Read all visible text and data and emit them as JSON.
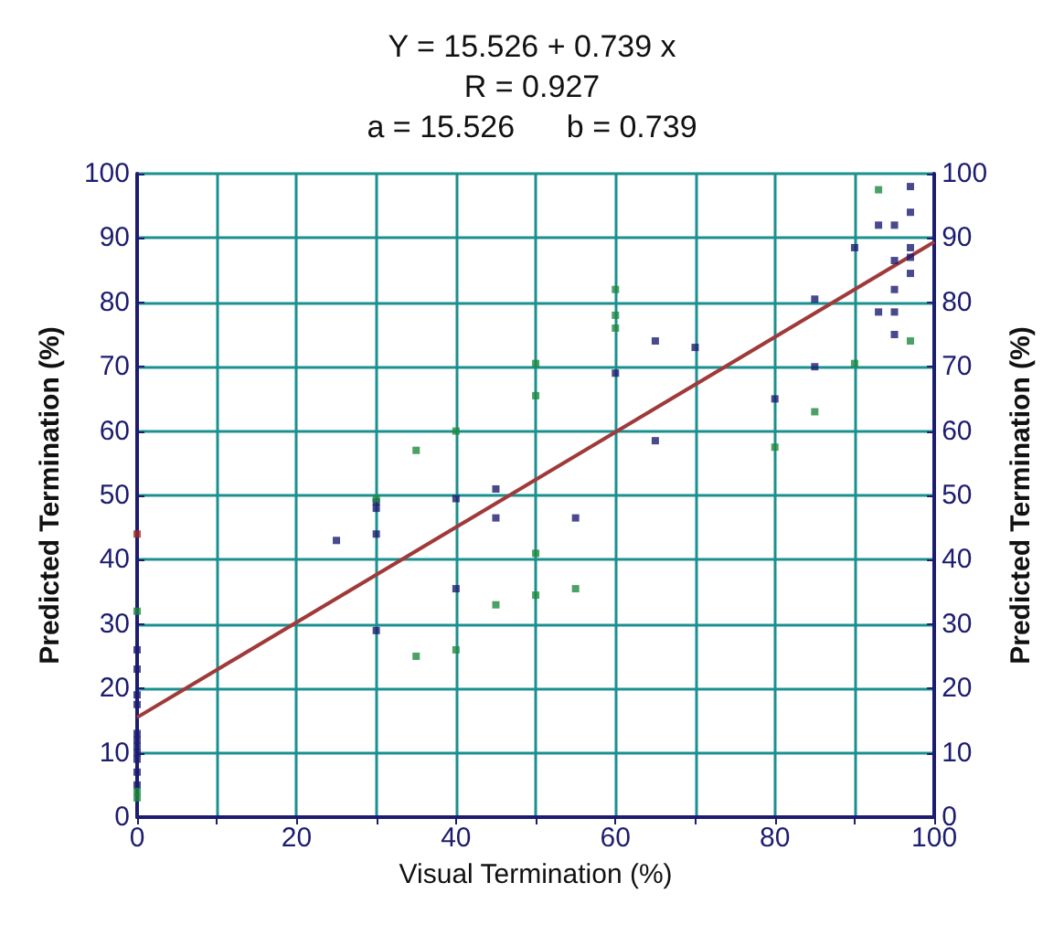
{
  "chart_data": {
    "type": "scatter",
    "title": "Y = 15.526 + 0.739 x",
    "subtitle": "R = 0.927",
    "annotations": [
      "a = 15.526      b = 0.739"
    ],
    "xlabel": "Visual Termination (%)",
    "ylabel": "Predicted Termination (%)",
    "y2label": "Predicted Termination (%)",
    "xlim": [
      0,
      100
    ],
    "xticks": [
      0,
      {
        "value": 10,
        "label": null
      },
      20,
      {
        "value": 30,
        "label": null
      },
      40,
      {
        "value": 50,
        "label": null
      },
      60,
      {
        "value": 70,
        "label": null
      },
      80,
      {
        "value": 90,
        "label": null
      },
      100
    ],
    "ylim": [
      0,
      100
    ],
    "yticks": [
      0,
      10,
      20,
      30,
      40,
      50,
      60,
      70,
      80,
      90,
      100
    ],
    "y2lim": [
      0,
      100
    ],
    "y2ticks": [
      0,
      10,
      20,
      30,
      40,
      50,
      60,
      70,
      80,
      90,
      100
    ],
    "grid": true,
    "marker": "square",
    "series": [
      {
        "color": "#1c1c70",
        "x": [
          0,
          0,
          0,
          0,
          0,
          0,
          0,
          0,
          0,
          0,
          0,
          25,
          30,
          30,
          30,
          30,
          40,
          40,
          45,
          45,
          55,
          60,
          65,
          65,
          70,
          80,
          85,
          85,
          90,
          93,
          93,
          95,
          95,
          95,
          95,
          95,
          97,
          97,
          97,
          97,
          97
        ],
        "values": [
          26,
          23,
          19,
          17.5,
          13,
          12,
          11,
          10,
          9,
          7,
          5,
          43,
          49,
          48,
          44,
          29,
          49.5,
          35.5,
          51,
          46.5,
          46.5,
          69,
          74,
          58.5,
          73,
          65,
          80.5,
          70,
          88.5,
          78.5,
          92,
          92,
          86.5,
          82,
          78.5,
          75,
          98,
          94,
          88.5,
          87,
          84.5
        ]
      },
      {
        "color": "#1e8a3e",
        "x": [
          0,
          0,
          0,
          30,
          35,
          35,
          40,
          40,
          45,
          50,
          50,
          50,
          50,
          55,
          60,
          60,
          60,
          80,
          85,
          90,
          93,
          97
        ],
        "values": [
          32,
          4,
          3,
          49.5,
          57,
          25,
          60,
          26,
          33,
          70.5,
          65.5,
          41,
          34.5,
          35.5,
          82,
          78,
          76,
          57.5,
          63,
          70.5,
          97.5,
          74
        ]
      },
      {
        "color": "#a02828",
        "x": [
          0
        ],
        "values": [
          44
        ]
      },
      {
        "type": "line",
        "color": "#a03a3a",
        "x": [
          0,
          100
        ],
        "values": [
          15.5,
          89.4
        ],
        "marker": "none"
      }
    ]
  }
}
